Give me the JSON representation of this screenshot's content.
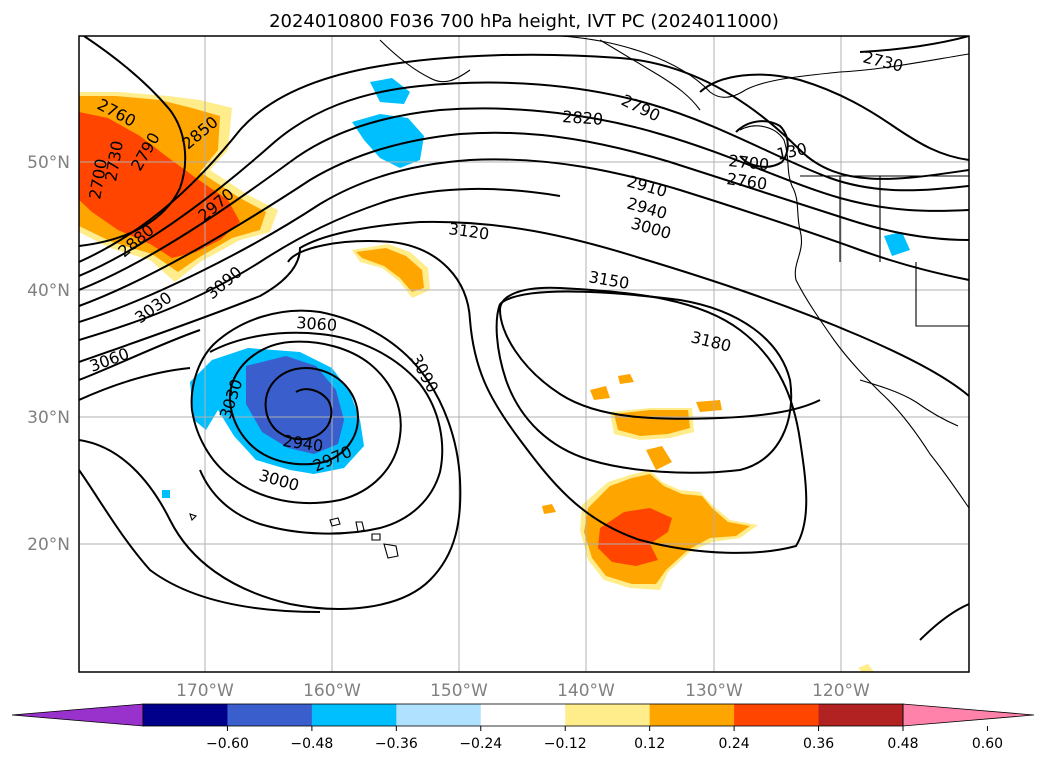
{
  "title": "2024010800 F036 700 hPa height, IVT PC (2024011000)",
  "lat_labels": [
    "50°N",
    "40°N",
    "30°N",
    "20°N"
  ],
  "lon_labels": [
    "170°W",
    "160°W",
    "150°W",
    "140°W",
    "130°W",
    "120°W"
  ],
  "colorbar": {
    "ticks": [
      "−0.60",
      "−0.48",
      "−0.36",
      "−0.24",
      "−0.12",
      "0.12",
      "0.24",
      "0.36",
      "0.48",
      "0.60"
    ],
    "colors": [
      "#9932cc",
      "#00008b",
      "#3a5fcd",
      "#00bfff",
      "#b0e2ff",
      "#ffffff",
      "#ffec8b",
      "#ffa500",
      "#ff4500",
      "#b22222",
      "#ff82ab"
    ]
  },
  "contour_labels": [
    {
      "text": "2760"
    },
    {
      "text": "2790"
    },
    {
      "text": "2850"
    },
    {
      "text": "2700"
    },
    {
      "text": "2730"
    },
    {
      "text": "2970"
    },
    {
      "text": "2880"
    },
    {
      "text": "3090"
    },
    {
      "text": "3030"
    },
    {
      "text": "3060"
    },
    {
      "text": "3120"
    },
    {
      "text": "3150"
    },
    {
      "text": "3180"
    },
    {
      "text": "2820"
    },
    {
      "text": "2790"
    },
    {
      "text": "2910"
    },
    {
      "text": "2940"
    },
    {
      "text": "3000"
    },
    {
      "text": "2730"
    },
    {
      "text": "2700"
    },
    {
      "text": "2760"
    },
    {
      "text": "130"
    },
    {
      "text": "3060"
    },
    {
      "text": "3030"
    },
    {
      "text": "3090"
    },
    {
      "text": "2940"
    },
    {
      "text": "2970"
    },
    {
      "text": "3000"
    }
  ]
}
